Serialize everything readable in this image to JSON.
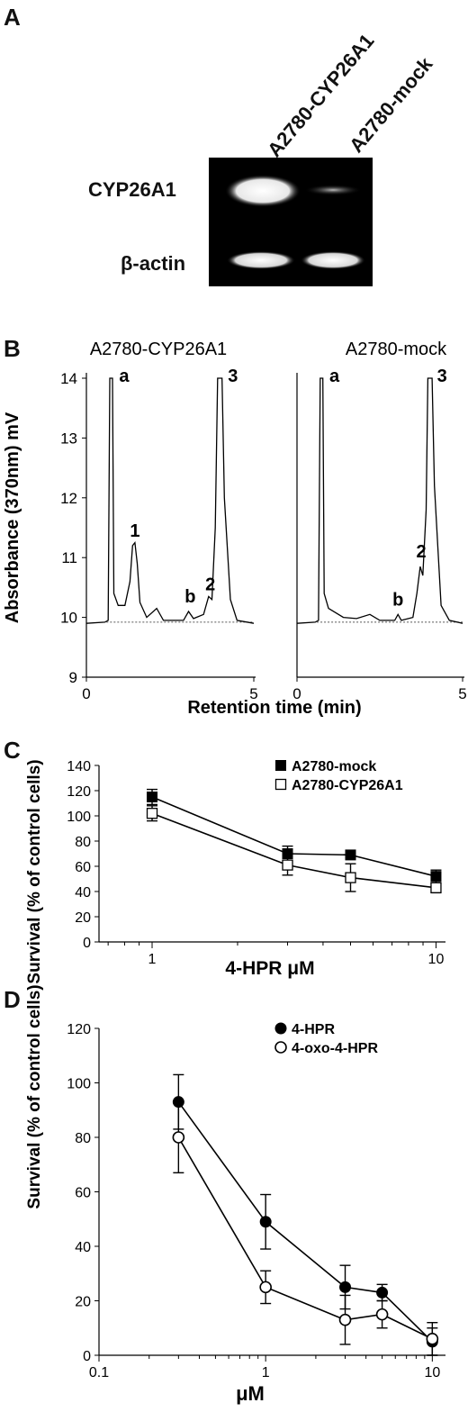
{
  "panel_labels": {
    "a": "A",
    "b": "B",
    "c": "C",
    "d": "D"
  },
  "blot": {
    "lanes": [
      "A2780-CYP26A1",
      "A2780-mock"
    ],
    "rows": [
      "CYP26A1",
      "β-actin"
    ]
  },
  "chart_data": [
    {
      "type": "line",
      "title": "A2780-CYP26A1",
      "xlabel": "Retention time (min)",
      "ylabel": "Absorbance (370nm) mV",
      "xlim": [
        0,
        5
      ],
      "ylim": [
        9,
        14
      ],
      "xticks": [
        "0",
        "5"
      ],
      "yticks": [
        "9",
        "10",
        "11",
        "12",
        "13",
        "14"
      ],
      "peaks": [
        {
          "label": "a",
          "x": 0.75
        },
        {
          "label": "1",
          "x": 1.45,
          "y": 11.2
        },
        {
          "label": "b",
          "x": 3.1,
          "y": 10.1
        },
        {
          "label": "2",
          "x": 3.7,
          "y": 10.3
        },
        {
          "label": "3",
          "x": 4.0
        }
      ],
      "trace": [
        [
          0,
          9.9
        ],
        [
          0.55,
          9.92
        ],
        [
          0.65,
          9.95
        ],
        [
          0.7,
          14
        ],
        [
          0.78,
          14
        ],
        [
          0.82,
          10.4
        ],
        [
          0.95,
          10.2
        ],
        [
          1.15,
          10.2
        ],
        [
          1.3,
          10.6
        ],
        [
          1.38,
          11.2
        ],
        [
          1.45,
          11.25
        ],
        [
          1.52,
          10.9
        ],
        [
          1.6,
          10.25
        ],
        [
          1.8,
          10.0
        ],
        [
          2.1,
          10.15
        ],
        [
          2.3,
          9.95
        ],
        [
          2.9,
          9.95
        ],
        [
          3.05,
          10.1
        ],
        [
          3.2,
          9.98
        ],
        [
          3.5,
          10.05
        ],
        [
          3.65,
          10.35
        ],
        [
          3.75,
          10.3
        ],
        [
          3.85,
          11.5
        ],
        [
          3.92,
          14
        ],
        [
          4.05,
          14
        ],
        [
          4.12,
          12.0
        ],
        [
          4.3,
          10.3
        ],
        [
          4.5,
          9.95
        ],
        [
          5,
          9.9
        ]
      ]
    },
    {
      "type": "line",
      "title": "A2780-mock",
      "xlabel": "Retention time (min)",
      "xlim": [
        0,
        5
      ],
      "ylim": [
        9,
        14
      ],
      "xticks": [
        "0",
        "5"
      ],
      "peaks": [
        {
          "label": "a",
          "x": 0.75
        },
        {
          "label": "b",
          "x": 3.05,
          "y": 10.05
        },
        {
          "label": "2",
          "x": 3.75,
          "y": 10.85
        },
        {
          "label": "3",
          "x": 4.0
        }
      ],
      "trace": [
        [
          0,
          9.9
        ],
        [
          0.55,
          9.92
        ],
        [
          0.65,
          9.95
        ],
        [
          0.7,
          14
        ],
        [
          0.78,
          14
        ],
        [
          0.82,
          10.4
        ],
        [
          0.95,
          10.15
        ],
        [
          1.4,
          10.0
        ],
        [
          1.8,
          9.98
        ],
        [
          2.2,
          10.05
        ],
        [
          2.5,
          9.95
        ],
        [
          2.95,
          9.95
        ],
        [
          3.05,
          10.05
        ],
        [
          3.15,
          9.95
        ],
        [
          3.5,
          10.0
        ],
        [
          3.62,
          10.4
        ],
        [
          3.72,
          10.85
        ],
        [
          3.8,
          10.7
        ],
        [
          3.9,
          11.8
        ],
        [
          3.95,
          14
        ],
        [
          4.08,
          14
        ],
        [
          4.15,
          12.2
        ],
        [
          4.35,
          10.2
        ],
        [
          4.6,
          9.95
        ],
        [
          5,
          9.9
        ]
      ]
    },
    {
      "type": "line",
      "xlabel": "4-HPR μM",
      "ylabel": "Survival (% of control cells)",
      "xscale": "log",
      "xlim": [
        0.65,
        10.8
      ],
      "ylim": [
        0,
        140
      ],
      "xticks": [
        "1",
        "10"
      ],
      "yticks": [
        "0",
        "20",
        "40",
        "60",
        "80",
        "100",
        "120",
        "140"
      ],
      "legend_position": "top-right",
      "series": [
        {
          "name": "A2780-mock",
          "marker": "filled-square",
          "x": [
            1,
            3,
            5,
            10
          ],
          "y": [
            115,
            70,
            69,
            52
          ],
          "err": [
            6,
            6,
            2,
            5
          ]
        },
        {
          "name": "A2780-CYP26A1",
          "marker": "open-square",
          "x": [
            1,
            3,
            5,
            10
          ],
          "y": [
            102,
            61,
            51,
            43
          ],
          "err": [
            6,
            8,
            11,
            4
          ]
        }
      ]
    },
    {
      "type": "line",
      "xlabel": "μM",
      "ylabel": "Survival (% of control cells)",
      "xscale": "log",
      "xlim": [
        0.1,
        12
      ],
      "ylim": [
        0,
        120
      ],
      "xticks": [
        "0.1",
        "1",
        "10"
      ],
      "yticks": [
        "0",
        "20",
        "40",
        "60",
        "80",
        "100",
        "120"
      ],
      "legend_position": "top-right",
      "series": [
        {
          "name": "4-HPR",
          "marker": "filled-circle",
          "x": [
            0.3,
            1,
            3,
            5,
            10
          ],
          "y": [
            93,
            49,
            25,
            23,
            5
          ],
          "err": [
            10,
            10,
            8,
            3,
            5
          ]
        },
        {
          "name": "4-oxo-4-HPR",
          "marker": "open-circle",
          "x": [
            0.3,
            1,
            3,
            5,
            10
          ],
          "y": [
            80,
            25,
            13,
            15,
            6
          ],
          "err": [
            13,
            6,
            9,
            5,
            6
          ]
        }
      ]
    }
  ]
}
